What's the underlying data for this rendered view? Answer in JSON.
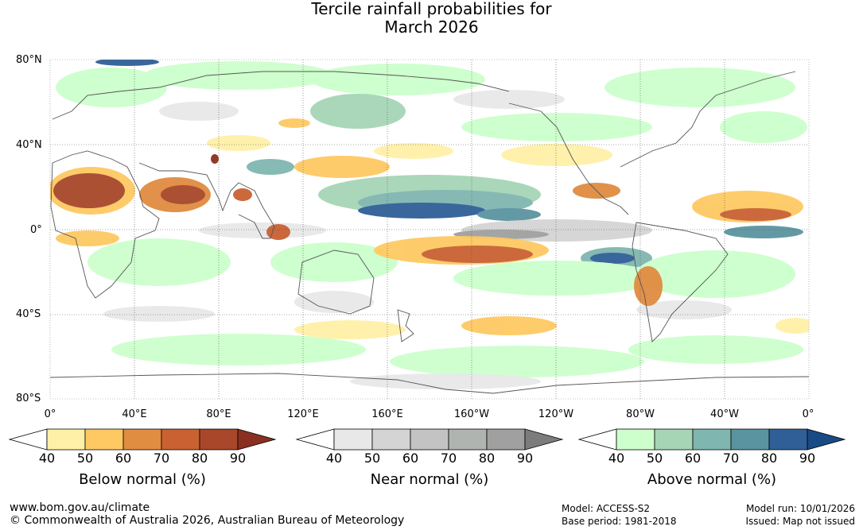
{
  "title_line1": "Tercile rainfall probabilities for",
  "title_line2": "March 2026",
  "lat_labels": [
    "80°N",
    "40°N",
    "0°",
    "40°S",
    "80°S"
  ],
  "lon_labels": [
    "0°",
    "40°E",
    "80°E",
    "120°E",
    "160°E",
    "160°W",
    "120°W",
    "80°W",
    "40°W",
    "0°"
  ],
  "legends": [
    {
      "title": "Below normal (%)",
      "ticks": [
        "40",
        "50",
        "60",
        "70",
        "80",
        "90"
      ],
      "colors": [
        "#fff0a8",
        "#fec963",
        "#e08c41",
        "#c96133",
        "#a8472a",
        "#8a3020"
      ]
    },
    {
      "title": "Near normal (%)",
      "ticks": [
        "40",
        "50",
        "60",
        "70",
        "80",
        "90"
      ],
      "colors": [
        "#e8e8e8",
        "#d4d4d4",
        "#c3c3c3",
        "#b0b4b0",
        "#a0a0a0",
        "#7c7c7c"
      ]
    },
    {
      "title": "Above normal (%)",
      "ticks": [
        "40",
        "50",
        "60",
        "70",
        "80",
        "90"
      ],
      "colors": [
        "#ccffcc",
        "#a6d5b6",
        "#80b6b0",
        "#5a94a0",
        "#2f5f96",
        "#184b85"
      ]
    }
  ],
  "footer": {
    "url": "www.bom.gov.au/climate",
    "copyright": "© Commonwealth of Australia 2026, Australian Bureau of Meteorology",
    "model": "Model: ACCESS-S2",
    "base_period": "Base period: 1981-2018",
    "model_run": "Model run: 10/01/2026",
    "issued": "Issued: Map not issued"
  }
}
